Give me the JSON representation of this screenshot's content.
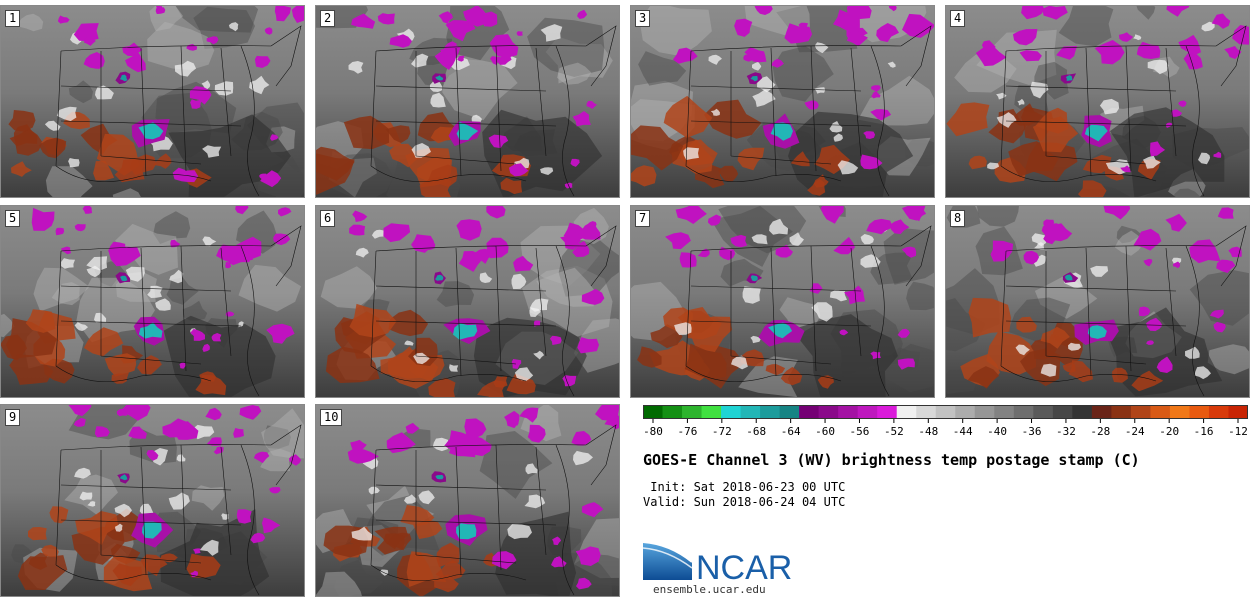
{
  "panels": [
    {
      "label": "1"
    },
    {
      "label": "2"
    },
    {
      "label": "3"
    },
    {
      "label": "4"
    },
    {
      "label": "5"
    },
    {
      "label": "6"
    },
    {
      "label": "7"
    },
    {
      "label": "8"
    },
    {
      "label": "9"
    },
    {
      "label": "10"
    }
  ],
  "colorbar": {
    "segments": [
      "#006a00",
      "#149014",
      "#2db42d",
      "#40e040",
      "#1fd4d4",
      "#22b6b6",
      "#1c9c9c",
      "#168484",
      "#740074",
      "#8a0a8a",
      "#a412a4",
      "#be18be",
      "#da1bda",
      "#f0f0f0",
      "#d8d8d8",
      "#c2c2c2",
      "#acacac",
      "#969696",
      "#828282",
      "#6e6e6e",
      "#5a5a5a",
      "#474747",
      "#343434",
      "#6a2418",
      "#8a3214",
      "#b04418",
      "#d85a16",
      "#f07818",
      "#e85a10",
      "#d83a0a",
      "#c82404"
    ],
    "ticks": [
      "-80",
      "-76",
      "-72",
      "-68",
      "-64",
      "-60",
      "-56",
      "-52",
      "-48",
      "-44",
      "-40",
      "-36",
      "-32",
      "-28",
      "-24",
      "-20",
      "-16",
      "-12"
    ],
    "min": -80,
    "max": -10
  },
  "title": "GOES-E Channel 3 (WV) brightness temp postage stamp (C)",
  "init": " Init: Sat 2018-06-23 00 UTC",
  "valid": "Valid: Sun 2018-06-24 04 UTC",
  "logo": {
    "text": "NCAR",
    "url": "ensemble.ucar.edu",
    "color": "#1a5fa8"
  }
}
